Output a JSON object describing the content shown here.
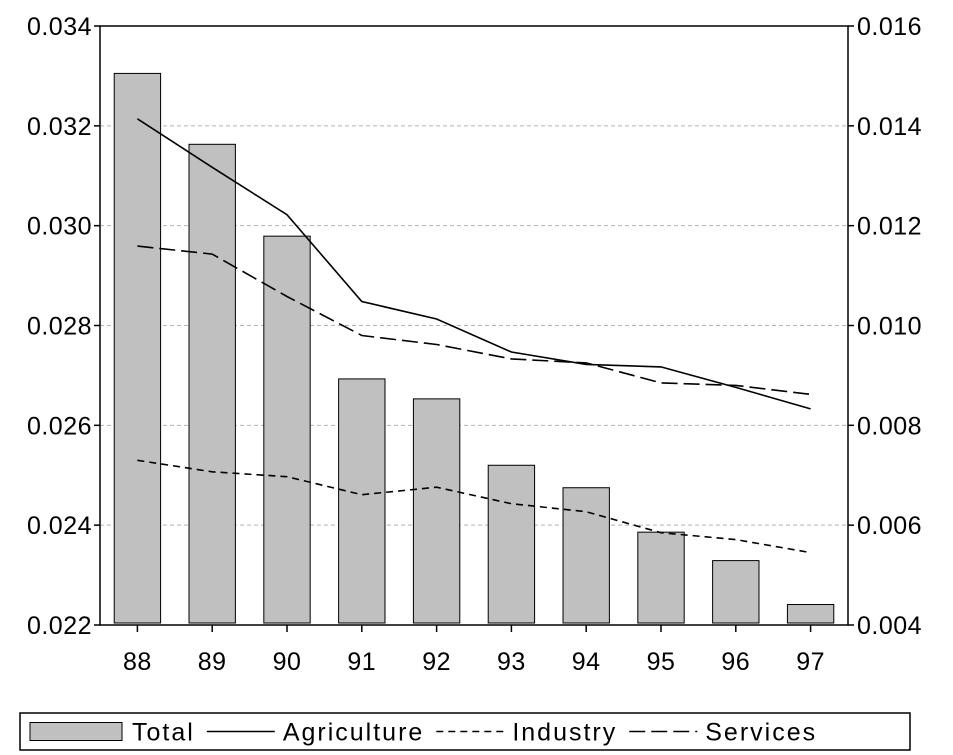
{
  "chart_data": {
    "type": "bar",
    "categories": [
      "88",
      "89",
      "90",
      "91",
      "92",
      "93",
      "94",
      "95",
      "96",
      "97"
    ],
    "left_axis": {
      "ylim": [
        0.022,
        0.034
      ],
      "ticks": [
        "0.022",
        "0.024",
        "0.026",
        "0.028",
        "0.030",
        "0.032",
        "0.034"
      ],
      "tick_values": [
        0.022,
        0.024,
        0.026,
        0.028,
        0.03,
        0.032,
        0.034
      ]
    },
    "right_axis": {
      "ylim": [
        0.004,
        0.016
      ],
      "ticks": [
        "0.004",
        "0.006",
        "0.008",
        "0.010",
        "0.012",
        "0.014",
        "0.016"
      ],
      "tick_values": [
        0.004,
        0.006,
        0.008,
        0.01,
        0.012,
        0.014,
        0.016
      ]
    },
    "grid": true,
    "legend_position": "bottom",
    "series": [
      {
        "name": "Total",
        "kind": "bar",
        "axis": "left",
        "color": "#c0c0c0",
        "values": [
          0.03305,
          0.03163,
          0.02979,
          0.02693,
          0.02653,
          0.0252,
          0.02475,
          0.02386,
          0.02329,
          0.02241
        ]
      },
      {
        "name": "Agriculture",
        "kind": "line",
        "axis": "right",
        "dash": "solid",
        "color": "#000000",
        "values": [
          0.01414,
          0.01317,
          0.01222,
          0.01048,
          0.01013,
          0.00947,
          0.00922,
          0.00917,
          0.00876,
          0.00833
        ]
      },
      {
        "name": "Industry",
        "kind": "line",
        "axis": "right",
        "dash": "short-dash",
        "color": "#000000",
        "values": [
          0.0073,
          0.00707,
          0.00697,
          0.00661,
          0.00676,
          0.00643,
          0.00627,
          0.00585,
          0.00571,
          0.00545
        ]
      },
      {
        "name": "Services",
        "kind": "line",
        "axis": "right",
        "dash": "long-dash",
        "color": "#000000",
        "values": [
          0.01159,
          0.01143,
          0.01058,
          0.0098,
          0.00962,
          0.00933,
          0.00925,
          0.00885,
          0.0088,
          0.00862
        ]
      }
    ]
  }
}
